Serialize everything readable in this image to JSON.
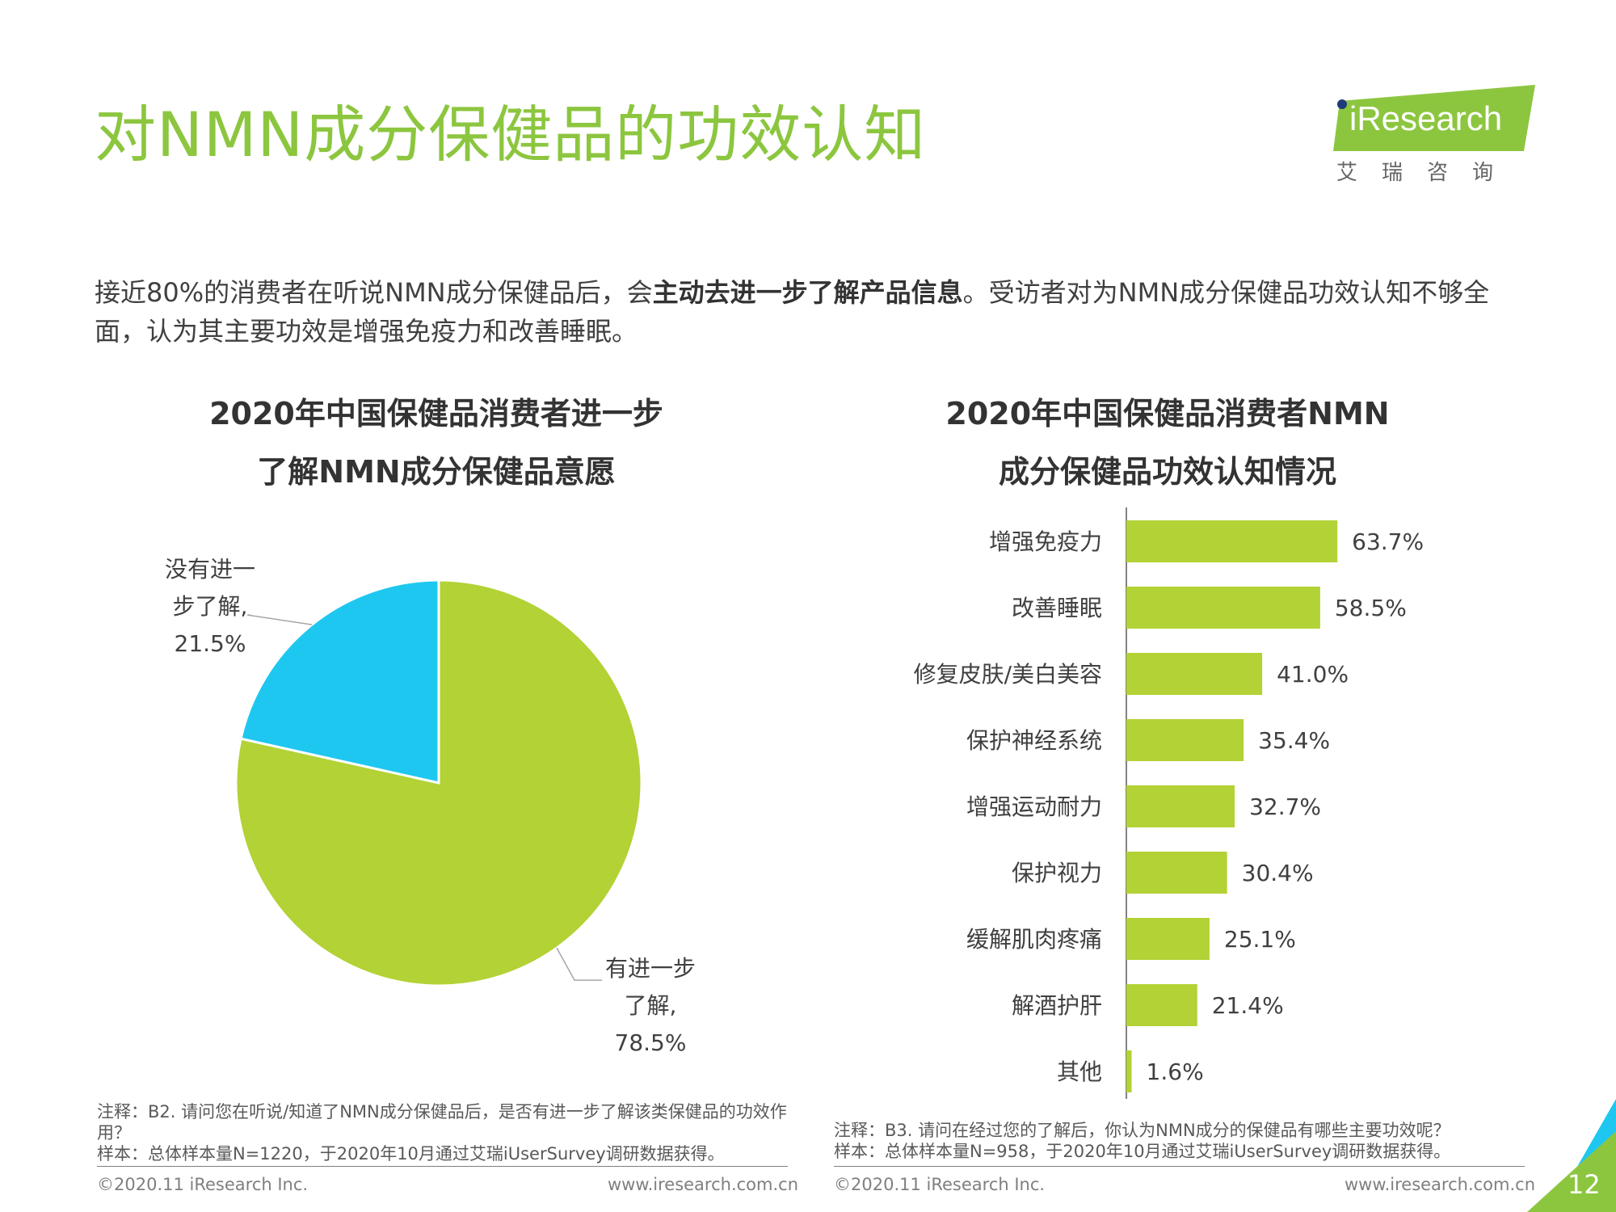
{
  "page": {
    "title": "对NMN成分保健品的功效认知",
    "intro_parts": {
      "before": "接近80%的消费者在听说NMN成分保健品后，会",
      "bold": "主动去进一步了解产品信息",
      "after": "。受访者对为NMN成分保健品功效认知不够全面，认为其主要功效是增强免疫力和改善睡眠。"
    },
    "page_number": "12"
  },
  "logo": {
    "text": "iResearch",
    "subtitle": "艾瑞咨询",
    "colors": {
      "badge": "#8cc63f",
      "dot": "#1f3b7a"
    }
  },
  "colors": {
    "title": "#8cc63f",
    "bar": "#b2d235",
    "pie_green": "#b2d235",
    "pie_blue": "#1ec7f0",
    "corner_blue": "#1ec7f0",
    "corner_green": "#8cc63f"
  },
  "chart_data": [
    {
      "type": "pie",
      "title_line1": "2020年中国保健品消费者进一步",
      "title_line2": "了解NMN成分保健品意愿",
      "slices": [
        {
          "label_line1": "没有进一",
          "label_line2": "步了解,",
          "value": 21.5,
          "value_label": "21.5%",
          "color": "#1ec7f0"
        },
        {
          "label_line1": "有进一步",
          "label_line2": "了解,",
          "value": 78.5,
          "value_label": "78.5%",
          "color": "#b2d235"
        }
      ],
      "note": "注释：B2. 请问您在听说/知道了NMN成分保健品后，是否有进一步了解该类保健品的功效作用？",
      "sample": "样本：总体样本量N=1220，于2020年10月通过艾瑞iUserSurvey调研数据获得。",
      "footer_left": "©2020.11 iResearch Inc.",
      "footer_right": "www.iresearch.com.cn"
    },
    {
      "type": "bar",
      "orientation": "horizontal",
      "title_line1": "2020年中国保健品消费者NMN",
      "title_line2": "成分保健品功效认知情况",
      "categories": [
        "增强免疫力",
        "改善睡眠",
        "修复皮肤/美白美容",
        "保护神经系统",
        "增强运动耐力",
        "保护视力",
        "缓解肌肉疼痛",
        "解酒护肝",
        "其他"
      ],
      "values": [
        63.7,
        58.5,
        41.0,
        35.4,
        32.7,
        30.4,
        25.1,
        21.4,
        1.6
      ],
      "value_labels": [
        "63.7%",
        "58.5%",
        "41.0%",
        "35.4%",
        "32.7%",
        "30.4%",
        "25.1%",
        "21.4%",
        "1.6%"
      ],
      "unit": "%",
      "note": "注释：B3. 请问在经过您的了解后，你认为NMN成分的保健品有哪些主要功效呢？",
      "sample": "样本：总体样本量N=958，于2020年10月通过艾瑞iUserSurvey调研数据获得。",
      "footer_left": "©2020.11 iResearch Inc.",
      "footer_right": "www.iresearch.com.cn"
    }
  ]
}
